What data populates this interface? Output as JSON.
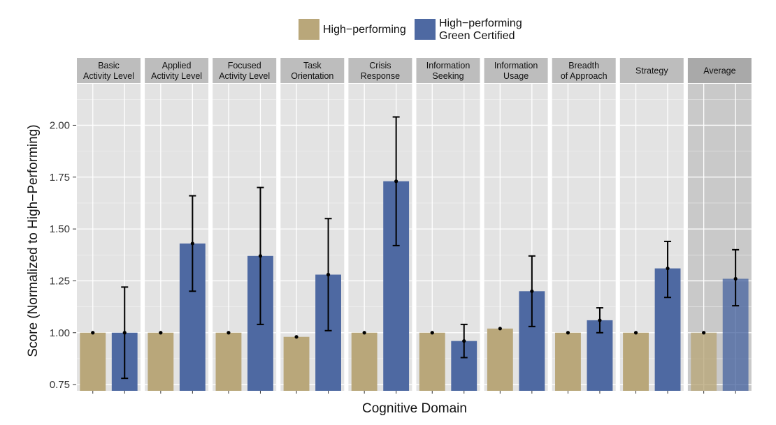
{
  "legend": {
    "high_performing": "High−performing",
    "green_certified": "High−performing\nGreen Certified"
  },
  "colors": {
    "high_performing": "#B9A77A",
    "green_certified": "#4E69A2",
    "panel_bg": "#E3E3E3",
    "panel_bg_highlight": "#C9C9C9",
    "strip_bg": "#BDBDBD",
    "grid": "#FFFFFF"
  },
  "chart_data": {
    "type": "bar",
    "title": "",
    "xlabel": "Cognitive Domain",
    "ylabel": "Score (Normalized to High−Performing)",
    "ylim": [
      0.72,
      2.2
    ],
    "yticks": [
      0.75,
      1.0,
      1.25,
      1.5,
      1.75,
      2.0
    ],
    "ytick_labels": [
      "0.75",
      "1.00",
      "1.25",
      "1.50",
      "1.75",
      "2.00"
    ],
    "grid": true,
    "legend_position": "top",
    "panels": [
      "Basic\nActivity Level",
      "Applied\nActivity Level",
      "Focused\nActivity Level",
      "Task\nOrientation",
      "Crisis\nResponse",
      "Information\nSeeking",
      "Information\nUsage",
      "Breadth\nof Approach",
      "Strategy",
      "Average"
    ],
    "highlight_panel": "Average",
    "series": [
      {
        "name": "High−performing",
        "values": [
          1.0,
          1.0,
          1.0,
          0.98,
          1.0,
          1.0,
          1.02,
          1.0,
          1.0,
          1.0
        ],
        "err_low": [
          1.0,
          1.0,
          1.0,
          0.98,
          1.0,
          1.0,
          1.02,
          1.0,
          1.0,
          1.0
        ],
        "err_high": [
          1.0,
          1.0,
          1.0,
          0.98,
          1.0,
          1.0,
          1.02,
          1.0,
          1.0,
          1.0
        ]
      },
      {
        "name": "High−performing Green Certified",
        "values": [
          1.0,
          1.43,
          1.37,
          1.28,
          1.73,
          0.96,
          1.2,
          1.06,
          1.31,
          1.26
        ],
        "err_low": [
          0.78,
          1.2,
          1.04,
          1.01,
          1.42,
          0.88,
          1.03,
          1.0,
          1.17,
          1.13
        ],
        "err_high": [
          1.22,
          1.66,
          1.7,
          1.55,
          2.04,
          1.04,
          1.37,
          1.12,
          1.44,
          1.4
        ]
      }
    ]
  }
}
